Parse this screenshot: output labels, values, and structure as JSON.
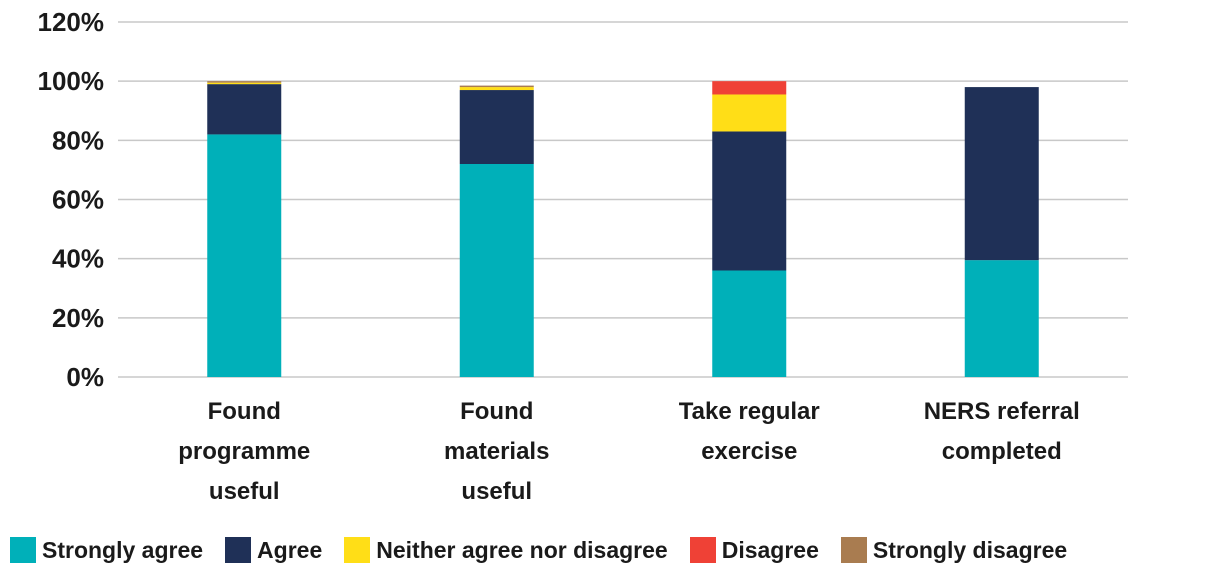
{
  "chart_data": {
    "type": "bar",
    "stacked": true,
    "categories": [
      [
        "Found",
        "programme",
        "useful"
      ],
      [
        "Found",
        "materials",
        "useful"
      ],
      [
        "Take regular",
        "exercise"
      ],
      [
        "NERS referral",
        "completed"
      ]
    ],
    "series": [
      {
        "name": "Strongly agree",
        "color": "#00B0B9",
        "values": [
          82,
          72,
          36,
          39.5
        ]
      },
      {
        "name": "Agree",
        "color": "#1F3057",
        "values": [
          17,
          25,
          47,
          58.5
        ]
      },
      {
        "name": "Neither agree nor disagree",
        "color": "#FFDE17",
        "values": [
          0.5,
          1,
          12.5,
          0
        ]
      },
      {
        "name": "Disagree",
        "color": "#EF4136",
        "values": [
          0,
          0,
          4.5,
          0
        ]
      },
      {
        "name": "Strongly disagree",
        "color": "#A97C50",
        "values": [
          0.5,
          0.5,
          0,
          0
        ]
      }
    ],
    "y_ticks": [
      "0%",
      "20%",
      "40%",
      "60%",
      "80%",
      "100%",
      "120%"
    ],
    "ylim": [
      0,
      120
    ],
    "grid": true,
    "legend_position": "bottom"
  }
}
